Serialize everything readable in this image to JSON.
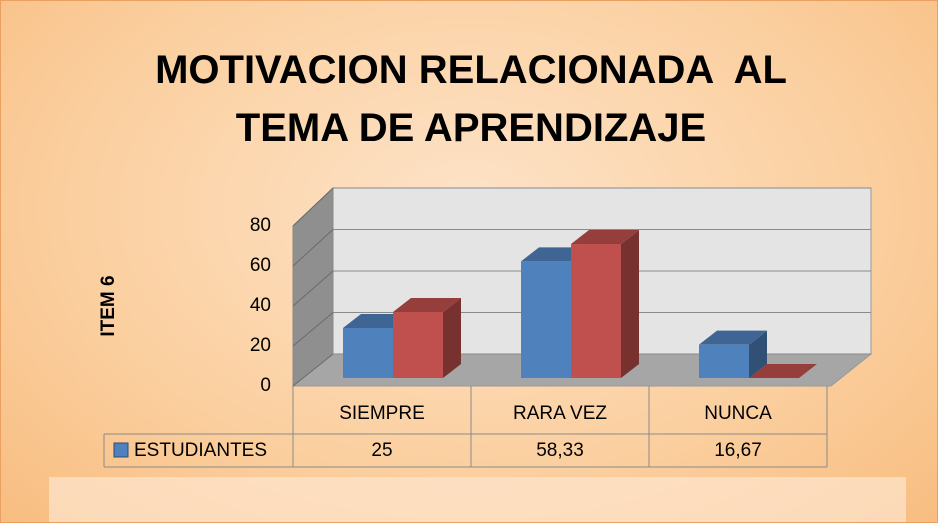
{
  "chart_data": {
    "type": "bar3d",
    "title": "MOTIVACION RELACIONADA  AL TEMA DE APRENDIZAJE",
    "y_label": "ITEM 6",
    "categories": [
      "SIEMPRE",
      "RARA VEZ",
      "NUNCA"
    ],
    "series": [
      {
        "name": "ESTUDIANTES",
        "color": "#4f81bd",
        "values": [
          25,
          58.33,
          16.67
        ],
        "value_labels": [
          "25",
          "58,33",
          "16,67"
        ]
      },
      {
        "color": "#c0504d",
        "values": [
          33,
          67,
          0
        ]
      }
    ],
    "ylim": [
      0,
      80
    ],
    "yticks": [
      0,
      20,
      40,
      60,
      80
    ],
    "grid": true
  }
}
